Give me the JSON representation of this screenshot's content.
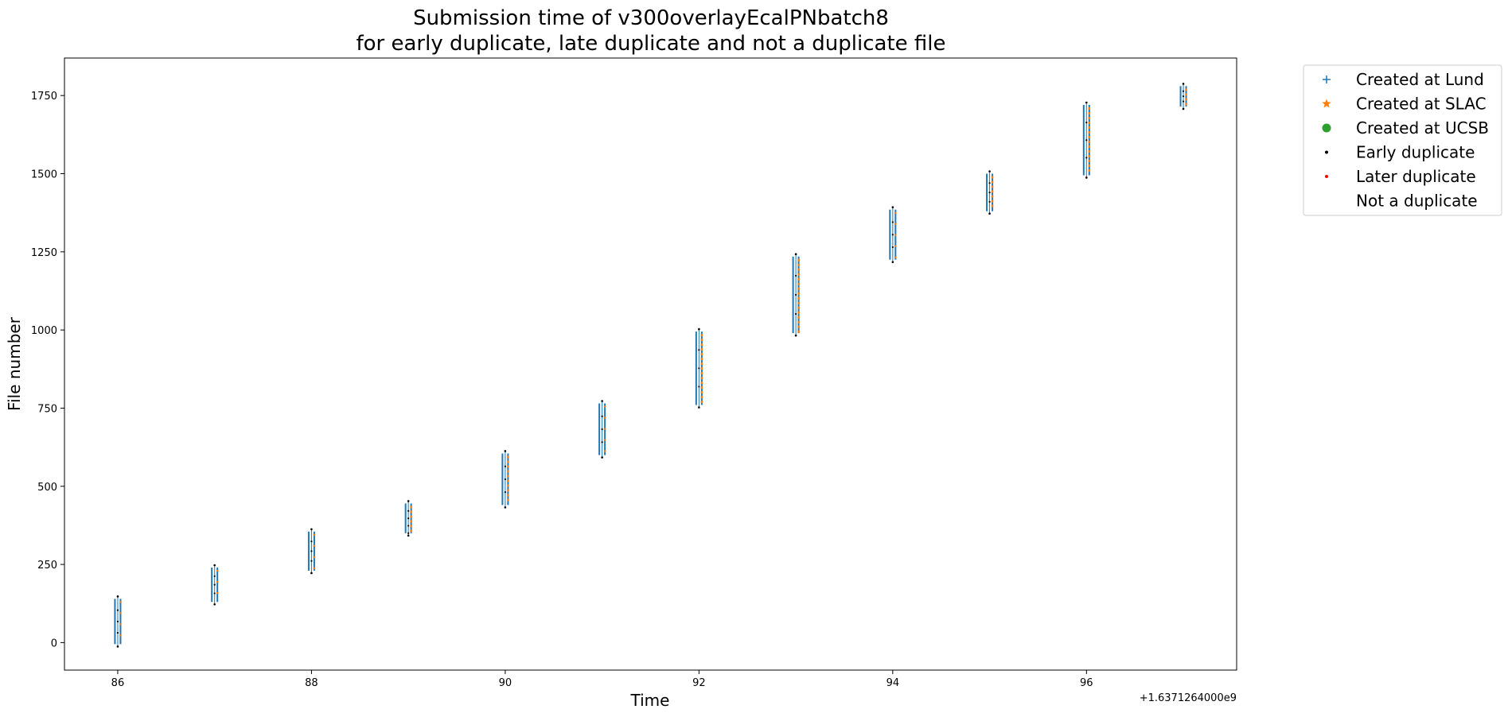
{
  "chart_data": {
    "type": "scatter",
    "title_line1": "Submission time of v300overlayEcalPNbatch8",
    "title_line2": "for early duplicate, late duplicate and not a duplicate file",
    "xlabel": "Time",
    "ylabel": "File number",
    "x_offset_label": "+1.6371264000e9",
    "xlim": [
      85.45,
      97.55
    ],
    "ylim": [
      -88,
      1870
    ],
    "x_ticks": [
      86,
      88,
      90,
      92,
      94,
      96
    ],
    "x_tick_labels": [
      "86",
      "88",
      "90",
      "92",
      "94",
      "96"
    ],
    "y_ticks": [
      0,
      250,
      500,
      750,
      1000,
      1250,
      1500,
      1750
    ],
    "y_tick_labels": [
      "0",
      "250",
      "500",
      "750",
      "1000",
      "1250",
      "1500",
      "1750"
    ],
    "groups": [
      {
        "x": 86,
        "y_min": -5,
        "y_max": 140
      },
      {
        "x": 87,
        "y_min": 130,
        "y_max": 240
      },
      {
        "x": 88,
        "y_min": 230,
        "y_max": 355
      },
      {
        "x": 89,
        "y_min": 350,
        "y_max": 445
      },
      {
        "x": 90,
        "y_min": 440,
        "y_max": 605
      },
      {
        "x": 91,
        "y_min": 600,
        "y_max": 765
      },
      {
        "x": 92,
        "y_min": 760,
        "y_max": 995
      },
      {
        "x": 93,
        "y_min": 990,
        "y_max": 1235
      },
      {
        "x": 94,
        "y_min": 1225,
        "y_max": 1385
      },
      {
        "x": 95,
        "y_min": 1380,
        "y_max": 1500
      },
      {
        "x": 96,
        "y_min": 1495,
        "y_max": 1720
      },
      {
        "x": 97,
        "y_min": 1715,
        "y_max": 1780
      }
    ],
    "legend_placement": "outside-top-right",
    "legend": [
      {
        "label": "Created at Lund",
        "marker": "plus",
        "color": "#1f77b4"
      },
      {
        "label": "Created at SLAC",
        "marker": "star",
        "color": "#ff7f0e"
      },
      {
        "label": "Created at UCSB",
        "marker": "circle",
        "color": "#2ca02c"
      },
      {
        "label": "Early duplicate",
        "marker": "dot",
        "color": "#000000"
      },
      {
        "label": "Later duplicate",
        "marker": "dot",
        "color": "#ff0000"
      },
      {
        "label": "Not a duplicate",
        "marker": "none",
        "color": "#ffffff"
      }
    ],
    "grid": false
  }
}
